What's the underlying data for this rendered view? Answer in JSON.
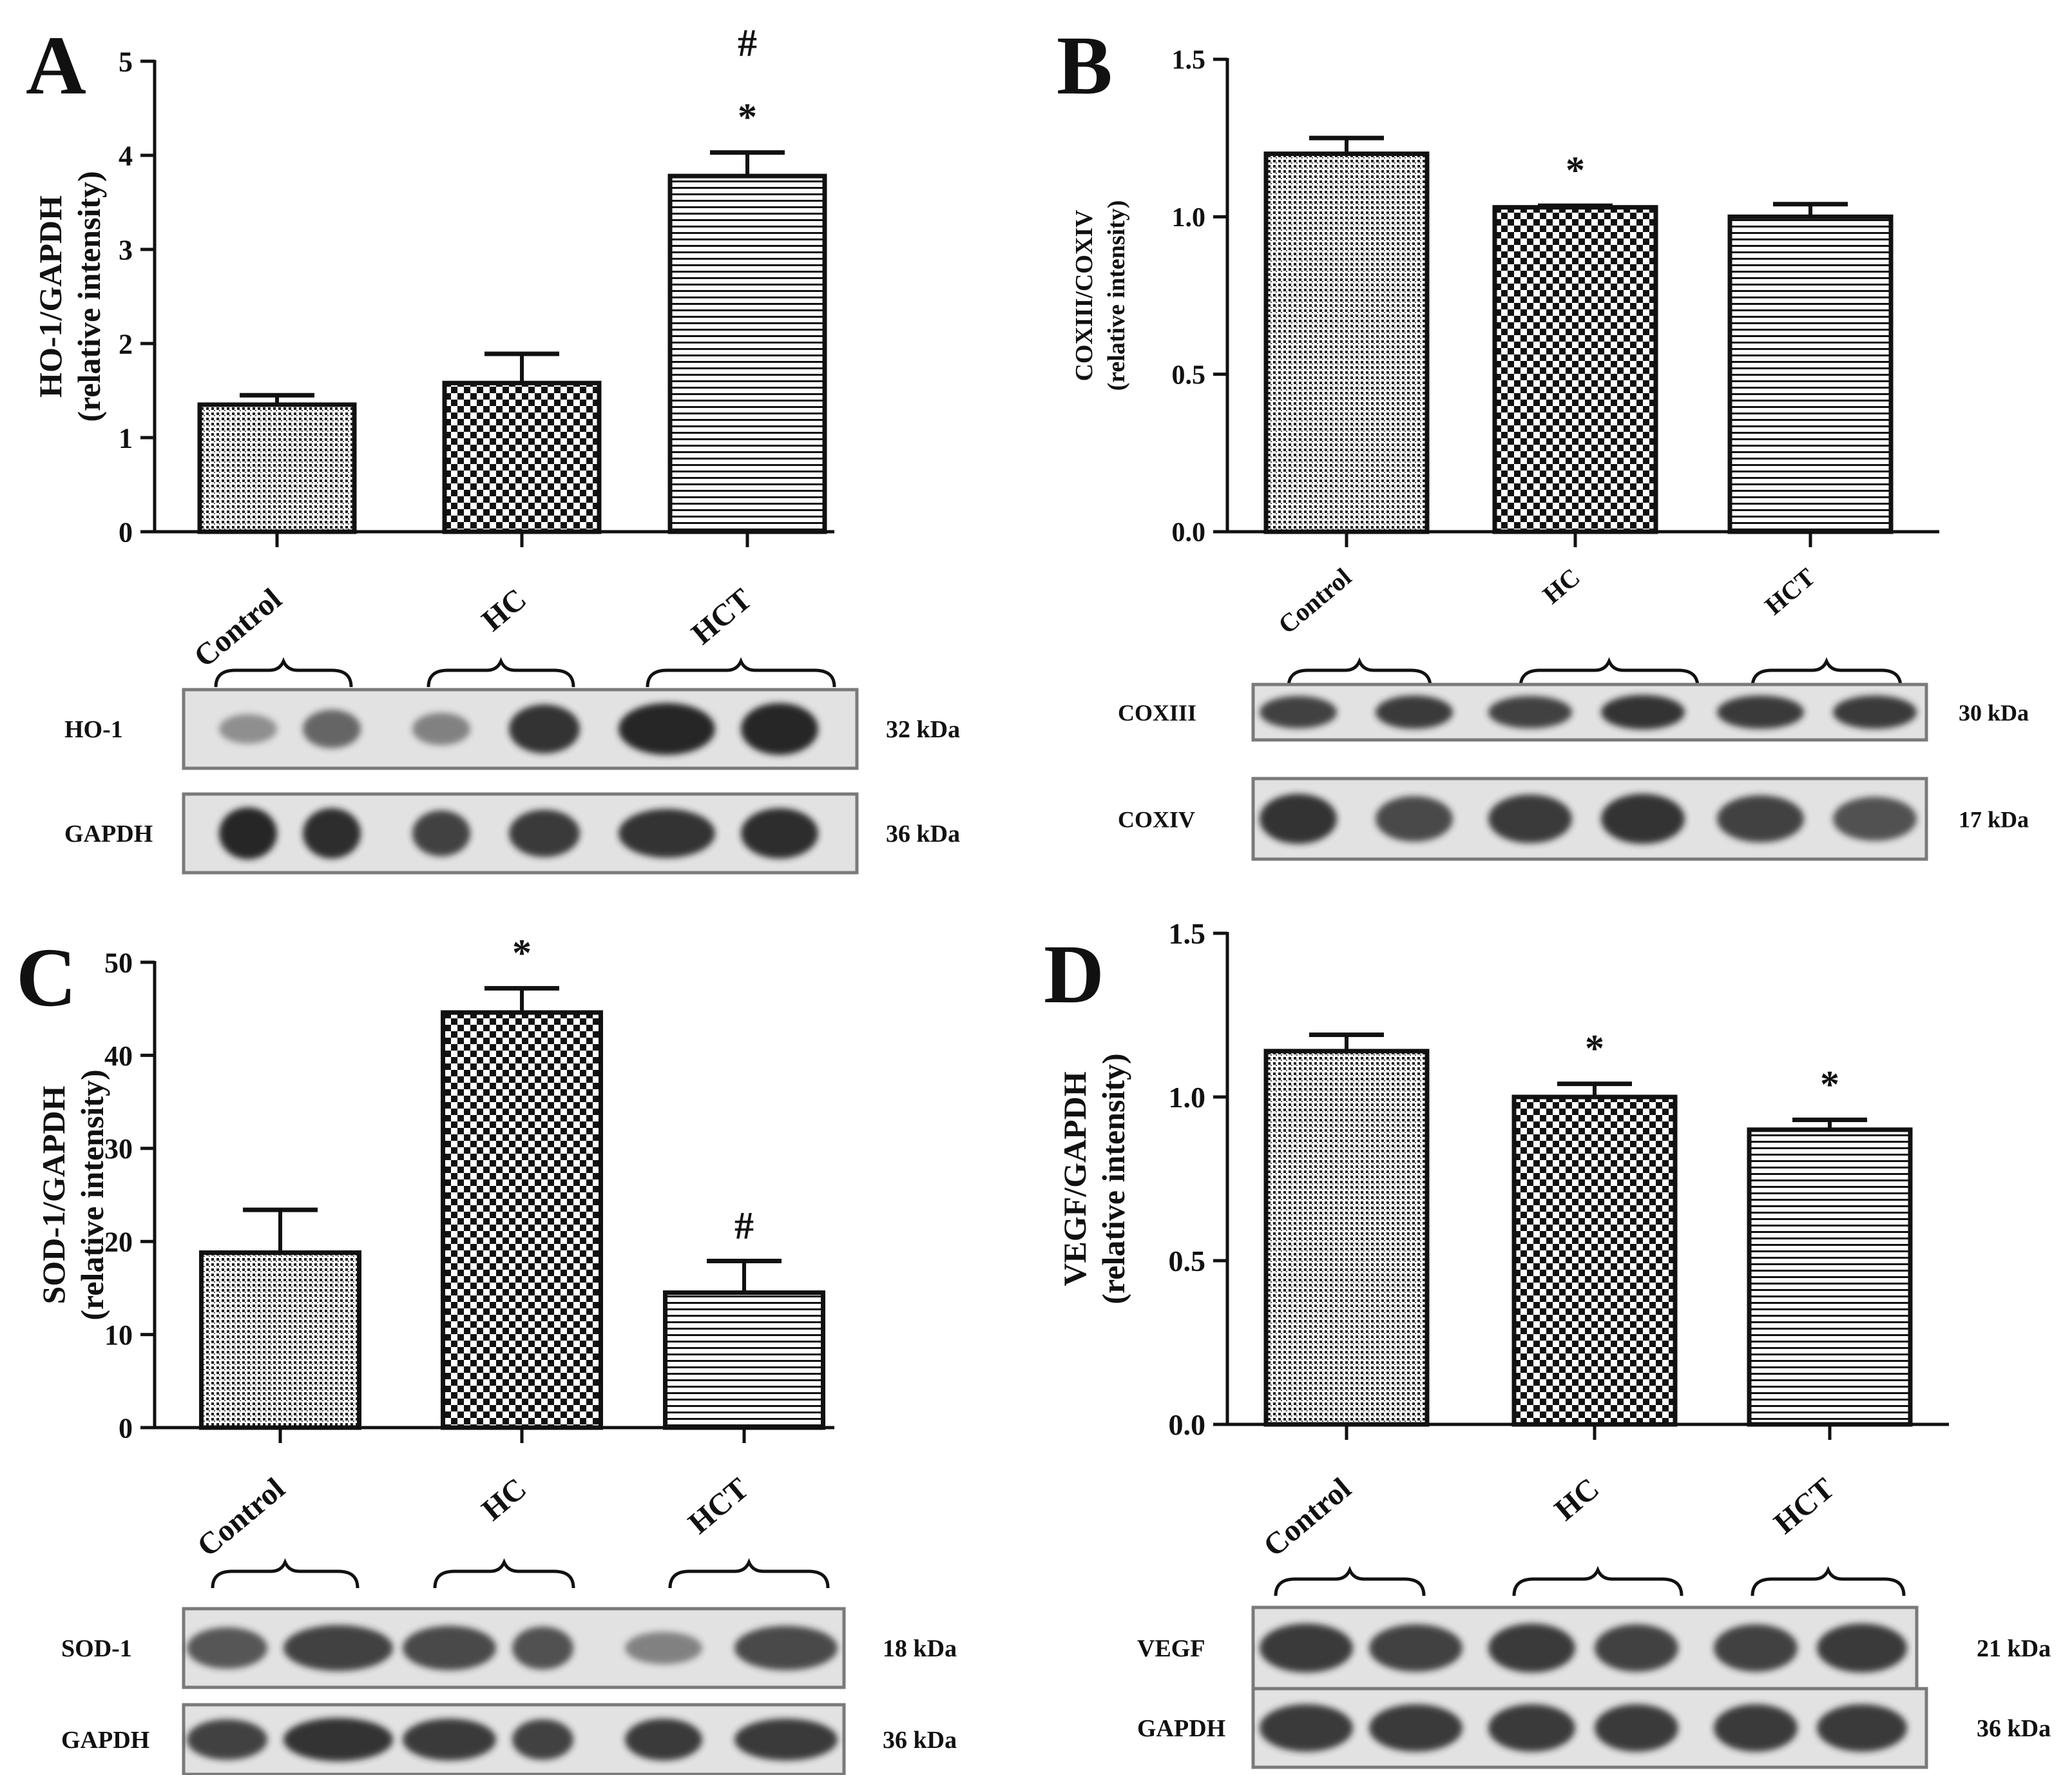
{
  "figure": {
    "colors": {
      "ink": "#111111",
      "bar_fill": "#ffffff",
      "blot_bg": "#e2e2e2",
      "blot_band": "#262626",
      "blot_frame": "#7a7a7a"
    },
    "fill_patterns": [
      "fine-dots",
      "checkerboard",
      "horizontal-lines"
    ]
  },
  "chart_data": [
    {
      "panel": "A",
      "type": "bar",
      "categories": [
        "Control",
        "HC",
        "HCT"
      ],
      "values": [
        1.35,
        1.58,
        3.78
      ],
      "errors": [
        0.1,
        0.31,
        0.25
      ],
      "ylabel_lines": [
        "HO-1/GAPDH",
        "(relative intensity)"
      ],
      "ylim": [
        0,
        5
      ],
      "yticks": [
        0,
        1,
        2,
        3,
        4,
        5
      ],
      "tick_labels": [
        "0",
        "1",
        "2",
        "3",
        "4",
        "5"
      ],
      "annotations": [
        {
          "category": "HCT",
          "marks": [
            "*",
            "#"
          ]
        }
      ],
      "blots": [
        {
          "label": "HO-1",
          "size": "32 kDa",
          "intensity": [
            0.25,
            0.55,
            0.35,
            0.9,
            1.0,
            1.0
          ]
        },
        {
          "label": "GAPDH",
          "size": "36 kDa",
          "intensity": [
            1.0,
            0.95,
            0.8,
            0.85,
            0.9,
            0.95
          ]
        }
      ]
    },
    {
      "panel": "B",
      "type": "bar",
      "categories": [
        "Control",
        "HC",
        "HCT"
      ],
      "values": [
        1.2,
        1.03,
        1.0
      ],
      "errors": [
        0.05,
        0.005,
        0.04
      ],
      "ylabel_lines": [
        "COXIII/COXIV",
        "(relative intensity)"
      ],
      "ylim": [
        0,
        1.5
      ],
      "yticks": [
        0,
        0.5,
        1,
        1.5
      ],
      "tick_labels": [
        "0.0",
        "0.5",
        "1.0",
        "1.5"
      ],
      "annotations": [
        {
          "category": "HC",
          "marks": [
            "*"
          ]
        }
      ],
      "blots": [
        {
          "label": "COXIII",
          "size": "30 kDa",
          "intensity": [
            0.8,
            0.85,
            0.8,
            0.9,
            0.85,
            0.85
          ]
        },
        {
          "label": "COXIV",
          "size": "17 kDa",
          "intensity": [
            0.9,
            0.75,
            0.85,
            0.9,
            0.8,
            0.7
          ]
        }
      ]
    },
    {
      "panel": "C",
      "type": "bar",
      "categories": [
        "Control",
        "HC",
        "HCT"
      ],
      "values": [
        18.8,
        44.6,
        14.5
      ],
      "errors": [
        4.6,
        2.6,
        3.4
      ],
      "ylabel_lines": [
        "SOD-1/GAPDH",
        "(relative intensity)"
      ],
      "ylim": [
        0,
        50
      ],
      "yticks": [
        0,
        10,
        20,
        30,
        40,
        50
      ],
      "tick_labels": [
        "0",
        "10",
        "20",
        "30",
        "40",
        "50"
      ],
      "annotations": [
        {
          "category": "HC",
          "marks": [
            "*"
          ]
        },
        {
          "category": "HCT",
          "marks": [
            "#"
          ]
        }
      ],
      "blots": [
        {
          "label": "SOD-1",
          "size": "18 kDa",
          "intensity": [
            0.65,
            0.8,
            0.75,
            0.7,
            0.35,
            0.75
          ]
        },
        {
          "label": "GAPDH",
          "size": "36 kDa",
          "intensity": [
            0.8,
            0.9,
            0.85,
            0.8,
            0.85,
            0.85
          ]
        }
      ]
    },
    {
      "panel": "D",
      "type": "bar",
      "categories": [
        "Control",
        "HC",
        "HCT"
      ],
      "values": [
        1.14,
        1.0,
        0.9
      ],
      "errors": [
        0.05,
        0.04,
        0.03
      ],
      "ylabel_lines": [
        "VEGF/GAPDH",
        "(relative intensity)"
      ],
      "ylim": [
        0,
        1.5
      ],
      "yticks": [
        0,
        0.5,
        1,
        1.5
      ],
      "tick_labels": [
        "0.0",
        "0.5",
        "1.0",
        "1.5"
      ],
      "annotations": [
        {
          "category": "HC",
          "marks": [
            "*"
          ]
        },
        {
          "category": "HCT",
          "marks": [
            "*"
          ]
        }
      ],
      "blots": [
        {
          "label": "VEGF",
          "size": "21 kDa",
          "intensity": [
            0.85,
            0.8,
            0.85,
            0.8,
            0.8,
            0.85
          ]
        },
        {
          "label": "GAPDH",
          "size": "36 kDa",
          "intensity": [
            0.85,
            0.85,
            0.85,
            0.85,
            0.85,
            0.85
          ]
        }
      ]
    }
  ]
}
